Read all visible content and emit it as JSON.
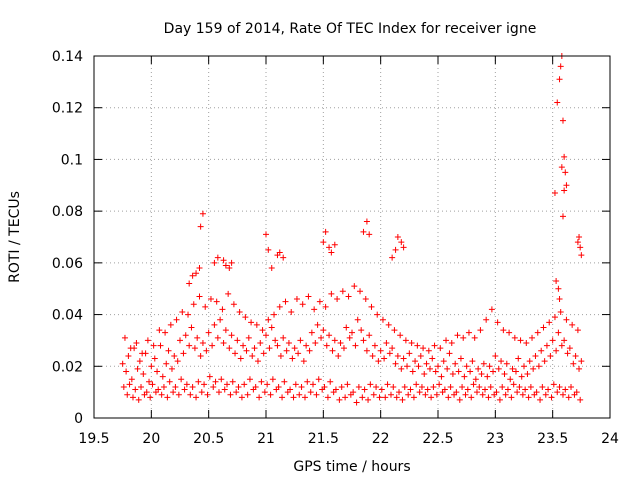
{
  "chart_data": {
    "type": "scatter",
    "title": "Day 159 of 2014, Rate Of TEC Index for receiver igne",
    "xlabel": "GPS time / hours",
    "ylabel": "ROTI / TECUs",
    "xlim": [
      19.5,
      24
    ],
    "ylim": [
      0,
      0.14
    ],
    "xticks": [
      "19.5",
      "20",
      "20.5",
      "21",
      "21.5",
      "22",
      "22.5",
      "23",
      "23.5",
      "24"
    ],
    "yticks": [
      "0",
      "0.02",
      "0.04",
      "0.06",
      "0.08",
      "0.1",
      "0.12",
      "0.14"
    ],
    "grid": true,
    "marker": "+",
    "series": [
      {
        "name": "ROTI",
        "color": "#ff0000",
        "x": [
          19.75,
          19.78,
          19.8,
          19.83,
          19.85,
          19.88,
          19.9,
          19.93,
          19.95,
          19.98,
          20.0,
          20.03,
          20.05,
          20.08,
          20.1,
          20.13,
          20.15,
          20.18,
          20.2,
          20.23,
          20.25,
          20.28,
          20.3,
          20.33,
          20.35,
          20.38,
          20.4,
          20.43,
          20.45,
          20.48,
          20.5,
          20.53,
          20.55,
          20.58,
          20.6,
          20.63,
          20.65,
          20.68,
          20.7,
          20.73,
          20.75,
          20.78,
          20.8,
          20.83,
          20.85,
          20.88,
          20.9,
          20.93,
          20.95,
          20.98,
          21.0,
          21.03,
          21.05,
          21.08,
          21.1,
          21.13,
          21.15,
          21.18,
          21.2,
          21.23,
          21.25,
          21.28,
          21.3,
          21.33,
          21.35,
          21.38,
          21.4,
          21.43,
          21.45,
          21.48,
          21.5,
          21.53,
          21.55,
          21.58,
          21.6,
          21.63,
          21.65,
          21.68,
          21.7,
          21.73,
          21.75,
          21.78,
          21.8,
          21.83,
          21.85,
          21.88,
          21.9,
          21.93,
          21.95,
          21.98,
          22.0,
          22.03,
          22.05,
          22.08,
          22.1,
          22.13,
          22.15,
          22.18,
          22.2,
          22.23,
          22.25,
          22.28,
          22.3,
          22.33,
          22.35,
          22.38,
          22.4,
          22.43,
          22.45,
          22.48,
          22.5,
          22.53,
          22.55,
          22.58,
          22.6,
          22.63,
          22.65,
          22.68,
          22.7,
          22.73,
          22.75,
          22.78,
          22.8,
          22.83,
          22.85,
          22.88,
          22.9,
          22.93,
          22.95,
          22.98,
          23.0,
          23.03,
          23.05,
          23.08,
          23.1,
          23.13,
          23.15,
          23.18,
          23.2,
          23.23,
          23.25,
          23.28,
          23.3,
          23.33,
          23.35,
          23.38,
          23.4,
          23.43,
          23.45,
          23.48,
          23.5,
          23.53,
          23.55,
          23.58,
          23.6,
          23.63,
          23.65,
          23.68,
          23.7,
          23.73,
          23.75,
          19.76,
          19.79,
          19.81,
          19.84,
          19.86,
          19.89,
          19.91,
          19.94,
          19.96,
          19.99,
          20.01,
          20.04,
          20.06,
          20.09,
          20.11,
          20.14,
          20.16,
          20.19,
          20.21,
          20.24,
          20.26,
          20.29,
          20.31,
          20.34,
          20.36,
          20.39,
          20.41,
          20.44,
          20.46,
          20.49,
          20.51,
          20.54,
          20.56,
          20.59,
          20.61,
          20.64,
          20.66,
          20.69,
          20.71,
          20.74,
          20.76,
          20.79,
          20.81,
          20.84,
          20.86,
          20.89,
          20.91,
          20.94,
          20.96,
          20.99,
          21.01,
          21.04,
          21.06,
          21.09,
          21.11,
          21.14,
          21.16,
          21.19,
          21.21,
          21.24,
          21.26,
          21.29,
          21.31,
          21.34,
          21.36,
          21.39,
          21.41,
          21.44,
          21.46,
          21.49,
          21.51,
          21.54,
          21.56,
          21.59,
          21.61,
          21.64,
          21.66,
          21.69,
          21.71,
          21.74,
          21.76,
          21.79,
          21.81,
          21.84,
          21.86,
          21.89,
          21.91,
          21.94,
          21.96,
          21.99,
          22.01,
          22.04,
          22.06,
          22.09,
          22.11,
          22.14,
          22.16,
          22.19,
          22.21,
          22.24,
          22.26,
          22.29,
          22.31,
          22.34,
          22.36,
          22.39,
          22.41,
          22.44,
          22.46,
          22.49,
          22.51,
          22.54,
          22.56,
          22.59,
          22.61,
          22.64,
          22.66,
          22.69,
          22.71,
          22.74,
          22.76,
          22.79,
          22.81,
          22.84,
          22.86,
          22.89,
          22.91,
          22.94,
          22.96,
          22.99,
          23.01,
          23.04,
          23.06,
          23.09,
          23.11,
          23.14,
          23.16,
          23.19,
          23.21,
          23.24,
          23.26,
          23.29,
          23.31,
          23.34,
          23.36,
          23.39,
          23.41,
          23.44,
          23.46,
          23.49,
          23.51,
          23.54,
          23.56,
          23.59,
          23.61,
          23.64,
          23.66,
          23.69,
          23.71,
          23.74,
          19.77,
          19.82,
          19.87,
          19.92,
          19.97,
          20.02,
          20.07,
          20.12,
          20.17,
          20.22,
          20.27,
          20.32,
          20.37,
          20.42,
          20.47,
          20.52,
          20.57,
          20.62,
          20.67,
          20.72,
          20.77,
          20.82,
          20.87,
          20.92,
          20.97,
          21.02,
          21.07,
          21.12,
          21.17,
          21.22,
          21.27,
          21.32,
          21.37,
          21.42,
          21.47,
          21.52,
          21.57,
          21.62,
          21.67,
          21.72,
          21.77,
          21.82,
          21.87,
          21.92,
          21.97,
          22.02,
          22.07,
          22.12,
          22.17,
          22.22,
          22.27,
          22.32,
          22.37,
          22.42,
          22.47,
          22.52,
          22.57,
          22.62,
          22.67,
          22.72,
          22.77,
          22.82,
          22.87,
          22.92,
          22.97,
          23.02,
          23.07,
          23.12,
          23.17,
          23.22,
          23.27,
          23.32,
          23.37,
          23.42,
          23.47,
          23.52,
          23.57,
          23.62,
          23.67,
          23.72,
          20.33,
          20.36,
          20.39,
          20.42,
          20.43,
          20.45,
          20.55,
          20.58,
          20.63,
          20.65,
          20.68,
          20.7,
          21.0,
          21.02,
          21.05,
          21.1,
          21.12,
          21.15,
          21.5,
          21.52,
          21.55,
          21.57,
          21.6,
          21.85,
          21.88,
          21.9,
          22.1,
          22.13,
          22.15,
          22.18,
          22.2,
          23.52,
          23.54,
          23.56,
          23.57,
          23.58,
          23.59,
          23.6,
          23.61,
          23.62,
          23.58,
          23.59,
          23.73,
          23.74,
          23.75,
          23.72,
          23.55,
          23.53,
          23.56,
          23.6
        ],
        "y": [
          0.021,
          0.018,
          0.024,
          0.015,
          0.027,
          0.019,
          0.022,
          0.017,
          0.025,
          0.014,
          0.02,
          0.023,
          0.018,
          0.028,
          0.016,
          0.021,
          0.026,
          0.019,
          0.024,
          0.022,
          0.03,
          0.025,
          0.032,
          0.028,
          0.035,
          0.027,
          0.031,
          0.024,
          0.029,
          0.026,
          0.033,
          0.028,
          0.036,
          0.031,
          0.038,
          0.029,
          0.034,
          0.027,
          0.032,
          0.025,
          0.03,
          0.023,
          0.028,
          0.026,
          0.031,
          0.024,
          0.027,
          0.022,
          0.029,
          0.025,
          0.032,
          0.027,
          0.035,
          0.03,
          0.028,
          0.024,
          0.031,
          0.026,
          0.029,
          0.023,
          0.027,
          0.025,
          0.03,
          0.022,
          0.028,
          0.026,
          0.033,
          0.029,
          0.036,
          0.031,
          0.034,
          0.028,
          0.032,
          0.026,
          0.03,
          0.024,
          0.029,
          0.027,
          0.035,
          0.031,
          0.033,
          0.028,
          0.038,
          0.034,
          0.03,
          0.026,
          0.032,
          0.024,
          0.028,
          0.022,
          0.026,
          0.023,
          0.029,
          0.025,
          0.027,
          0.021,
          0.024,
          0.019,
          0.023,
          0.02,
          0.025,
          0.018,
          0.022,
          0.02,
          0.024,
          0.017,
          0.021,
          0.019,
          0.023,
          0.018,
          0.02,
          0.016,
          0.022,
          0.019,
          0.025,
          0.017,
          0.021,
          0.018,
          0.023,
          0.016,
          0.02,
          0.018,
          0.022,
          0.015,
          0.019,
          0.017,
          0.021,
          0.016,
          0.02,
          0.018,
          0.024,
          0.019,
          0.022,
          0.017,
          0.021,
          0.015,
          0.019,
          0.018,
          0.023,
          0.016,
          0.02,
          0.017,
          0.022,
          0.019,
          0.024,
          0.02,
          0.026,
          0.022,
          0.028,
          0.024,
          0.03,
          0.026,
          0.033,
          0.028,
          0.03,
          0.025,
          0.027,
          0.021,
          0.024,
          0.019,
          0.022,
          0.012,
          0.009,
          0.013,
          0.008,
          0.011,
          0.007,
          0.012,
          0.009,
          0.01,
          0.008,
          0.013,
          0.01,
          0.011,
          0.009,
          0.012,
          0.008,
          0.014,
          0.01,
          0.012,
          0.009,
          0.015,
          0.011,
          0.013,
          0.009,
          0.012,
          0.008,
          0.014,
          0.01,
          0.013,
          0.009,
          0.016,
          0.012,
          0.014,
          0.01,
          0.015,
          0.011,
          0.013,
          0.009,
          0.014,
          0.01,
          0.012,
          0.008,
          0.013,
          0.009,
          0.015,
          0.011,
          0.012,
          0.008,
          0.014,
          0.01,
          0.013,
          0.009,
          0.015,
          0.011,
          0.012,
          0.008,
          0.014,
          0.01,
          0.011,
          0.008,
          0.013,
          0.009,
          0.012,
          0.008,
          0.014,
          0.01,
          0.013,
          0.009,
          0.015,
          0.011,
          0.012,
          0.008,
          0.014,
          0.01,
          0.011,
          0.007,
          0.012,
          0.008,
          0.013,
          0.009,
          0.01,
          0.006,
          0.012,
          0.008,
          0.011,
          0.007,
          0.013,
          0.009,
          0.012,
          0.008,
          0.011,
          0.008,
          0.013,
          0.009,
          0.012,
          0.008,
          0.01,
          0.007,
          0.012,
          0.009,
          0.011,
          0.008,
          0.013,
          0.01,
          0.012,
          0.009,
          0.011,
          0.008,
          0.012,
          0.009,
          0.013,
          0.01,
          0.011,
          0.008,
          0.012,
          0.009,
          0.01,
          0.007,
          0.012,
          0.009,
          0.011,
          0.008,
          0.013,
          0.01,
          0.012,
          0.009,
          0.011,
          0.008,
          0.012,
          0.009,
          0.01,
          0.007,
          0.012,
          0.009,
          0.011,
          0.008,
          0.013,
          0.01,
          0.012,
          0.009,
          0.011,
          0.008,
          0.012,
          0.009,
          0.01,
          0.007,
          0.012,
          0.009,
          0.011,
          0.008,
          0.013,
          0.01,
          0.012,
          0.009,
          0.011,
          0.008,
          0.012,
          0.009,
          0.01,
          0.007,
          0.031,
          0.027,
          0.029,
          0.025,
          0.03,
          0.028,
          0.034,
          0.033,
          0.036,
          0.038,
          0.041,
          0.04,
          0.044,
          0.047,
          0.043,
          0.046,
          0.045,
          0.042,
          0.048,
          0.044,
          0.041,
          0.039,
          0.037,
          0.036,
          0.034,
          0.038,
          0.04,
          0.043,
          0.045,
          0.041,
          0.046,
          0.044,
          0.047,
          0.042,
          0.045,
          0.043,
          0.048,
          0.046,
          0.049,
          0.047,
          0.051,
          0.049,
          0.046,
          0.043,
          0.04,
          0.038,
          0.036,
          0.034,
          0.032,
          0.03,
          0.029,
          0.028,
          0.027,
          0.026,
          0.028,
          0.027,
          0.03,
          0.029,
          0.032,
          0.031,
          0.033,
          0.031,
          0.034,
          0.038,
          0.042,
          0.037,
          0.034,
          0.033,
          0.031,
          0.03,
          0.029,
          0.031,
          0.033,
          0.035,
          0.037,
          0.039,
          0.041,
          0.038,
          0.036,
          0.034,
          0.052,
          0.055,
          0.056,
          0.058,
          0.074,
          0.079,
          0.06,
          0.062,
          0.061,
          0.059,
          0.058,
          0.06,
          0.071,
          0.065,
          0.058,
          0.063,
          0.064,
          0.062,
          0.068,
          0.072,
          0.066,
          0.064,
          0.067,
          0.072,
          0.076,
          0.071,
          0.062,
          0.065,
          0.07,
          0.068,
          0.066,
          0.087,
          0.122,
          0.131,
          0.136,
          0.14,
          0.115,
          0.101,
          0.095,
          0.09,
          0.097,
          0.078,
          0.07,
          0.066,
          0.063,
          0.068,
          0.05,
          0.053,
          0.046,
          0.088
        ]
      }
    ]
  }
}
